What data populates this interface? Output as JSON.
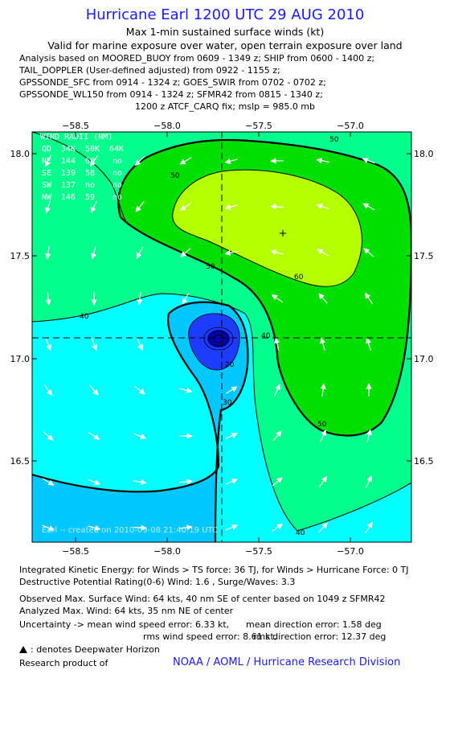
{
  "header": {
    "title": "Hurricane Earl 1200 UTC 29 AUG 2010",
    "subtitle1": "Max 1-min sustained surface winds (kt)",
    "subtitle2": "Valid for marine exposure over water, open terrain exposure over land",
    "analysis_lines": [
      "Analysis based on MOORED_BUOY from 0609 - 1349 z; SHIP from 0600 - 1400 z;",
      "TAIL_DOPPLER (User-defined adjusted) from 0922 - 1155 z;",
      "GPSSONDE_SFC from 0914 - 1324 z; GOES_SWIR from 0702 - 0702 z;",
      "GPSSONDE_WL150 from 0914 - 1324 z; SFMR42 from 0815 - 1340 z;"
    ],
    "fix_line": "1200 z ATCF_CARQ fix; mslp = 985.0 mb"
  },
  "map": {
    "x_ticks": [
      "−58.5",
      "−58.0",
      "−57.5",
      "−57.0"
    ],
    "y_ticks": [
      "18.0",
      "17.5",
      "17.0",
      "16.5"
    ],
    "contour_labels": [
      "50",
      "50",
      "60",
      "50",
      "40",
      "40",
      "20",
      "30",
      "50",
      "40"
    ],
    "watermark": "Earl -- created on 2010-09-08 21:40:19 UTC",
    "colors": {
      "c30": "#00c8ff",
      "c30_40": "#00ffff",
      "c40_50": "#00ff8c",
      "c50_60": "#00e000",
      "c60_70": "#b4ff00",
      "core": "#1e3cff",
      "core_inner": "#0000b4"
    },
    "wind_radii": {
      "title": "WIND RADII (NM)",
      "header": [
        "QD",
        "34K",
        "50K",
        "64K"
      ],
      "rows": [
        [
          "NE",
          "144",
          "68",
          "no"
        ],
        [
          "SE",
          "139",
          "58",
          "no"
        ],
        [
          "SW",
          "137",
          "no",
          "no"
        ],
        [
          "NW",
          "146",
          "59",
          "no"
        ]
      ]
    }
  },
  "footer": {
    "ike": "Integrated Kinetic Energy:  for Winds > TS force: 36 TJ,  for Winds > Hurricane Force: 0 TJ",
    "dpr": "Destructive Potential Rating(0-6)   Wind: 1.6 , Surge/Waves: 3.3",
    "obs_max": "Observed Max. Surface Wind: 64 kts, 40 nm SE of center based on 1049 z SFMR42",
    "ana_max": "Analyzed Max. Wind: 64 kts, 35 nm NE of center",
    "unc1_left": "Uncertainty -> mean wind speed error: 6.33 kt,",
    "unc1_right": "mean direction error: 1.58 deg",
    "unc2_left": "rms wind speed error: 8.61 kt,",
    "unc2_right": "rms direction error: 12.37 deg",
    "deepwater": ": denotes Deepwater Horizon",
    "research": "Research product of",
    "noaa": "NOAA / AOML / Hurricane Research Division"
  }
}
